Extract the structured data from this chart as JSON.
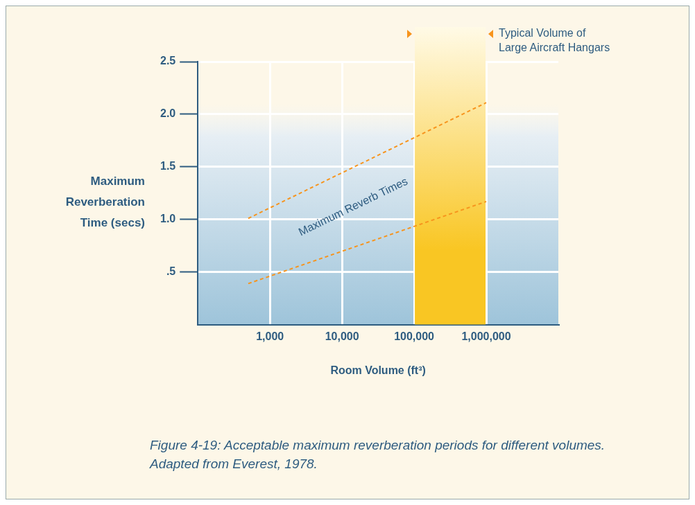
{
  "chart_data": {
    "type": "line",
    "xlabel": "Room Volume (ft³)",
    "ylabel": "Maximum Reverberation Time (secs)",
    "log": "x",
    "xlim": [
      100,
      10000000
    ],
    "xticks": [
      {
        "value": 1000,
        "label": "1,000"
      },
      {
        "value": 10000,
        "label": "10,000"
      },
      {
        "value": 100000,
        "label": "100,000"
      },
      {
        "value": 1000000,
        "label": "1,000,000"
      }
    ],
    "ylim": [
      0,
      2.5
    ],
    "yticks": [
      {
        "value": 0.5,
        "label": ".5"
      },
      {
        "value": 1,
        "label": "1.0"
      },
      {
        "value": 1.5,
        "label": "1.5"
      },
      {
        "value": 2,
        "label": "2.0"
      },
      {
        "value": 2.5,
        "label": "2.5"
      }
    ],
    "grid": true,
    "legend": false,
    "marker": "none",
    "line_style": "dashed",
    "x": [
      500,
      1000000
    ],
    "series": [
      {
        "color": "#f7941d",
        "values": [
          1.01,
          2.11
        ]
      },
      {
        "color": "#f7941d",
        "values": [
          0.39,
          1.17
        ]
      }
    ],
    "bands": [
      {
        "axis": "x",
        "from": 100000,
        "to": 1000000,
        "label": "Typical Volume of\nLarge Aircraft Hangars",
        "color": "#f9c623"
      }
    ],
    "annotations": [
      "Maximum Reverb Times",
      "Figure 4-19: Acceptable maximum reverberation periods for different volumes. Adapted from Everest, 1978."
    ]
  }
}
